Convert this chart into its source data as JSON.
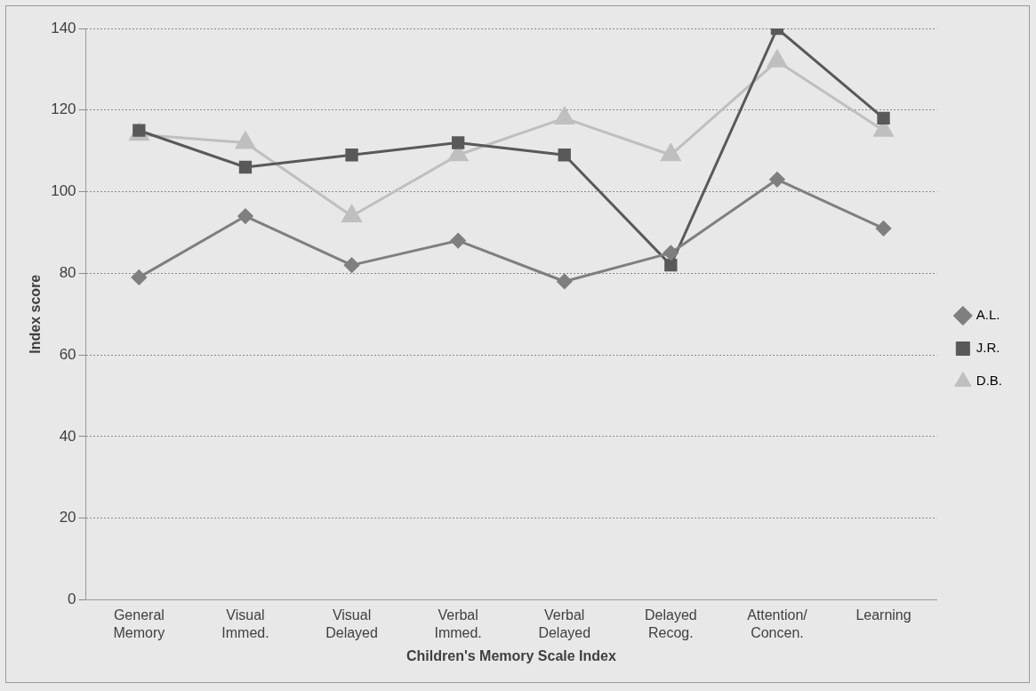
{
  "chart_data": {
    "type": "line",
    "xlabel": "Children's Memory Scale Index",
    "ylabel": "Index score",
    "categories": [
      "General Memory",
      "Visual Immed.",
      "Visual Delayed",
      "Verbal Immed.",
      "Verbal Delayed",
      "Delayed Recog.",
      "Attention/ Concen.",
      "Learning"
    ],
    "series": [
      {
        "name": "A.L.",
        "color": "#7f7f7f",
        "marker": "diamond",
        "values": [
          79,
          94,
          82,
          88,
          78,
          85,
          103,
          91
        ]
      },
      {
        "name": "J.R.",
        "color": "#595959",
        "marker": "square",
        "values": [
          115,
          106,
          109,
          112,
          109,
          82,
          140,
          118
        ]
      },
      {
        "name": "D.B.",
        "color": "#bfbfbf",
        "marker": "triangle",
        "values": [
          114,
          112,
          94,
          109,
          118,
          109,
          132,
          115
        ]
      }
    ],
    "ylim": [
      0,
      140
    ],
    "yticks": [
      0,
      20,
      40,
      60,
      80,
      100,
      120,
      140
    ],
    "grid": "y",
    "legend": "right"
  }
}
